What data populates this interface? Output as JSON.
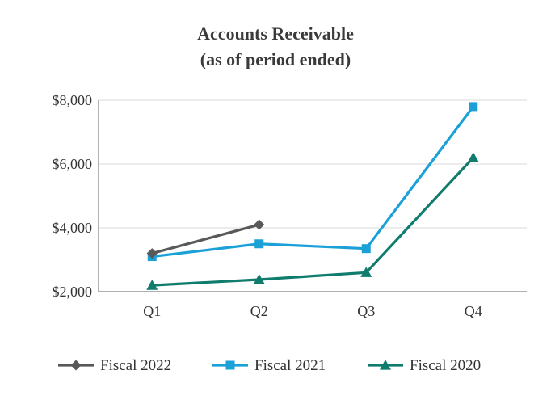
{
  "chart_data": {
    "type": "line",
    "title": "Accounts Receivable",
    "subtitle": "(as of period ended)",
    "xlabel": "",
    "ylabel": "",
    "categories": [
      "Q1",
      "Q2",
      "Q3",
      "Q4"
    ],
    "ylim": [
      2000,
      8000
    ],
    "yticks": [
      2000,
      4000,
      6000,
      8000
    ],
    "ytick_labels": [
      "$2,000",
      "$4,000",
      "$6,000",
      "$8,000"
    ],
    "grid": true,
    "legend_position": "bottom",
    "series": [
      {
        "name": "Fiscal 2022",
        "color": "#595959",
        "marker": "diamond",
        "values": [
          3200,
          4100,
          null,
          null
        ]
      },
      {
        "name": "Fiscal 2021",
        "color": "#1ba1d8",
        "marker": "square",
        "values": [
          3100,
          3500,
          3350,
          7800
        ]
      },
      {
        "name": "Fiscal 2020",
        "color": "#107c6e",
        "marker": "triangle",
        "values": [
          2200,
          2380,
          2600,
          6200
        ]
      }
    ]
  }
}
